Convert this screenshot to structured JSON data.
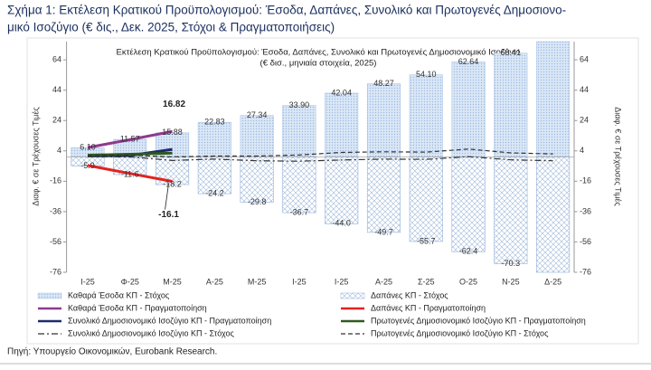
{
  "figure_title": [
    "Σχήμα 1: Εκτέλεση Κρατικού Προϋπολογισμού: Έσοδα, Δαπάνες, Συνολικό και Πρωτογενές Δημοσιονο-",
    "μικό Ισοζύγιο (€ δις., Δεκ. 2025, Στόχοι & Πραγματοποιήσεις)"
  ],
  "source": "Πηγή: Υπουργείο Οικονομικών, Eurobank Research.",
  "chart_data": {
    "type": "bar",
    "title": "Εκτέλεση Κρατικού Προϋπολογισμού: Έσοδα, Δαπάνες, Συνολικό και Πρωτογενές Δημοσιονομικό Ισοζύγιο",
    "subtitle": "(€ δισ., μηνιαία στοιχεία, 2025)",
    "y_label": "Διαφ. € σε Τρέχουσες Τιμές",
    "y2_label": "Διαφ. € σε Τρέχουσες Τιμές",
    "categories": [
      "Ι-25",
      "Φ-25",
      "Μ-25",
      "Α-25",
      "Μ-25",
      "Ι-25",
      "Ι-25",
      "Α-25",
      "Σ-25",
      "Ο-25",
      "Ν-25",
      "Δ-25"
    ],
    "ylim": [
      -76,
      76
    ],
    "yticks": [
      64,
      44,
      24,
      4,
      -16,
      -36,
      -56,
      -76
    ],
    "y2lim": [
      -76,
      76
    ],
    "y2ticks": [
      64,
      44,
      24,
      4,
      -16,
      -36,
      -56,
      -76
    ],
    "series": [
      {
        "name": "Καθαρά Έσοδα ΚΠ - Στόχος",
        "type": "bar",
        "pattern": "dots",
        "color": "#a9c4e6",
        "values": [
          6.1,
          11.57,
          15.88,
          22.83,
          27.34,
          33.9,
          42.04,
          48.27,
          54.1,
          62.64,
          68.41,
          76
        ],
        "value_labels": [
          "6.10",
          "11.57",
          "15.88",
          "22.83",
          "27.34",
          "33.90",
          "42.04",
          "48.27",
          "54.10",
          "62.64",
          "68.41",
          null
        ]
      },
      {
        "name": "Δαπάνες ΚΠ - Στόχος",
        "type": "bar",
        "pattern": "cross",
        "color": "#8fb0da",
        "values": [
          -5.9,
          -11.6,
          -18.2,
          -24.2,
          -29.8,
          -36.7,
          -44,
          -49.7,
          -55.7,
          -62.4,
          -70.3,
          -76
        ],
        "value_labels": [
          "-5.9",
          "-11.6",
          "-18.2",
          "-24.2",
          "-29.8",
          "-36.7",
          "-44.0",
          "-49.7",
          "-55.7",
          "-62.4",
          "-70.3",
          null
        ]
      },
      {
        "name": "Καθαρά Έσοδα ΚΠ - Πραγματοποίηση",
        "type": "line",
        "color": "#8e3a8c",
        "width": 3,
        "values": [
          6.2,
          11.4,
          16.82,
          null,
          null,
          null,
          null,
          null,
          null,
          null,
          null,
          null
        ]
      },
      {
        "name": "Δαπάνες ΚΠ - Πραγματοποίηση",
        "type": "line",
        "color": "#e3231f",
        "width": 3,
        "values": [
          -5.6,
          -10.9,
          -16.1,
          null,
          null,
          null,
          null,
          null,
          null,
          null,
          null,
          null
        ]
      },
      {
        "name": "Συνολικό Δημοσιονομικό Ισοζύγιο ΚΠ - Πραγματοποίηση",
        "type": "line",
        "color": "#1e2a6e",
        "width": 3,
        "values": [
          0.6,
          1.0,
          5.0,
          null,
          null,
          null,
          null,
          null,
          null,
          null,
          null,
          null
        ]
      },
      {
        "name": "Πρωτογενές Δημοσιονομικό Ισοζύγιο ΚΠ - Πραγματοποίηση",
        "type": "line",
        "color": "#2f5a1e",
        "width": 3,
        "values": [
          1.2,
          1.8,
          2.5,
          null,
          null,
          null,
          null,
          null,
          null,
          null,
          null,
          null
        ]
      },
      {
        "name": "Συνολικό Δημοσιονομικό Ισοζύγιο ΚΠ - Στόχος",
        "type": "line",
        "color": "#333333",
        "width": 1.2,
        "dash": "dashdot",
        "values": [
          0.2,
          0,
          -2.3,
          -1.4,
          -2.5,
          -2.8,
          -2,
          -1.4,
          -1.6,
          0.2,
          -1.9,
          -2.5
        ]
      },
      {
        "name": "Πρωτογενές Δημοσιονομικό Ισοζύγιο ΚΠ - Στόχος",
        "type": "line",
        "color": "#333333",
        "width": 1.2,
        "dash": "dashed",
        "values": [
          1,
          1.3,
          0,
          0.6,
          0.6,
          1.3,
          3,
          3.4,
          3.2,
          5.2,
          2.7,
          2
        ]
      }
    ]
  }
}
